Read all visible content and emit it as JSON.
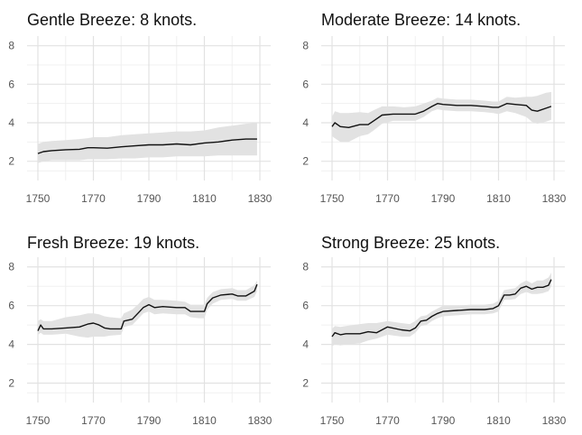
{
  "chart_data": [
    {
      "type": "line",
      "title": "Gentle Breeze: 8 knots.",
      "xlabel": "",
      "ylabel": "",
      "xlim": [
        1750,
        1830
      ],
      "ylim": [
        1,
        8.5
      ],
      "xticks": [
        1750,
        1770,
        1790,
        1810,
        1830
      ],
      "yticks": [
        2,
        4,
        6,
        8
      ],
      "grid": true,
      "series": [
        {
          "x": [
            1750,
            1752,
            1755,
            1760,
            1765,
            1768,
            1770,
            1775,
            1780,
            1785,
            1790,
            1795,
            1800,
            1805,
            1810,
            1815,
            1820,
            1825,
            1829
          ],
          "y": [
            2.4,
            2.5,
            2.55,
            2.6,
            2.62,
            2.7,
            2.7,
            2.68,
            2.75,
            2.8,
            2.85,
            2.85,
            2.9,
            2.85,
            2.95,
            3.0,
            3.1,
            3.15,
            3.15
          ],
          "lower": [
            1.9,
            2.0,
            2.05,
            2.05,
            2.05,
            2.1,
            2.1,
            2.1,
            2.15,
            2.15,
            2.2,
            2.2,
            2.25,
            2.25,
            2.25,
            2.3,
            2.3,
            2.3,
            2.3
          ],
          "upper": [
            2.9,
            3.0,
            3.05,
            3.1,
            3.15,
            3.2,
            3.25,
            3.25,
            3.35,
            3.4,
            3.45,
            3.5,
            3.55,
            3.55,
            3.6,
            3.75,
            3.85,
            3.95,
            4.0
          ]
        }
      ]
    },
    {
      "type": "line",
      "title": "Moderate Breeze: 14 knots.",
      "xlabel": "",
      "ylabel": "",
      "xlim": [
        1750,
        1830
      ],
      "ylim": [
        1,
        8.5
      ],
      "xticks": [
        1750,
        1770,
        1790,
        1810,
        1830
      ],
      "yticks": [
        2,
        4,
        6,
        8
      ],
      "grid": true,
      "series": [
        {
          "x": [
            1750,
            1751,
            1753,
            1756,
            1760,
            1763,
            1765,
            1768,
            1772,
            1776,
            1780,
            1783,
            1786,
            1788,
            1790,
            1795,
            1800,
            1805,
            1808,
            1810,
            1813,
            1816,
            1820,
            1822,
            1824,
            1827,
            1829
          ],
          "y": [
            3.8,
            4.0,
            3.8,
            3.75,
            3.9,
            3.9,
            4.1,
            4.4,
            4.45,
            4.45,
            4.45,
            4.6,
            4.85,
            5.0,
            4.95,
            4.9,
            4.9,
            4.85,
            4.8,
            4.8,
            5.0,
            4.95,
            4.9,
            4.65,
            4.6,
            4.75,
            4.85
          ],
          "lower": [
            3.3,
            3.2,
            3.0,
            3.0,
            3.3,
            3.4,
            3.6,
            3.95,
            4.1,
            4.1,
            4.1,
            4.3,
            4.6,
            4.7,
            4.65,
            4.6,
            4.6,
            4.55,
            4.5,
            4.45,
            4.6,
            4.5,
            4.3,
            4.05,
            3.95,
            4.05,
            4.15
          ],
          "upper": [
            4.3,
            4.6,
            4.5,
            4.5,
            4.55,
            4.5,
            4.65,
            4.85,
            4.85,
            4.8,
            4.85,
            5.0,
            5.15,
            5.3,
            5.25,
            5.2,
            5.2,
            5.15,
            5.1,
            5.1,
            5.35,
            5.3,
            5.35,
            5.35,
            5.4,
            5.55,
            5.6
          ]
        }
      ]
    },
    {
      "type": "line",
      "title": "Fresh Breeze: 19 knots.",
      "xlabel": "",
      "ylabel": "",
      "xlim": [
        1750,
        1830
      ],
      "ylim": [
        1,
        8.5
      ],
      "xticks": [
        1750,
        1770,
        1790,
        1810,
        1830
      ],
      "yticks": [
        2,
        4,
        6,
        8
      ],
      "grid": true,
      "series": [
        {
          "x": [
            1750,
            1751,
            1752,
            1755,
            1760,
            1765,
            1768,
            1770,
            1772,
            1774,
            1776,
            1780,
            1781,
            1784,
            1786,
            1788,
            1790,
            1792,
            1795,
            1800,
            1803,
            1805,
            1808,
            1810,
            1811,
            1813,
            1816,
            1820,
            1822,
            1825,
            1828,
            1829
          ],
          "y": [
            4.7,
            5.0,
            4.8,
            4.8,
            4.85,
            4.9,
            5.05,
            5.1,
            5.0,
            4.85,
            4.8,
            4.8,
            5.2,
            5.3,
            5.6,
            5.9,
            6.05,
            5.9,
            5.95,
            5.9,
            5.9,
            5.7,
            5.7,
            5.7,
            6.1,
            6.4,
            6.55,
            6.6,
            6.5,
            6.5,
            6.75,
            7.1
          ],
          "lower": [
            4.5,
            4.6,
            4.5,
            4.5,
            4.55,
            4.4,
            4.35,
            4.4,
            4.4,
            4.4,
            4.45,
            4.5,
            4.9,
            5.0,
            5.3,
            5.6,
            5.7,
            5.55,
            5.6,
            5.55,
            5.55,
            5.4,
            5.35,
            5.35,
            5.8,
            6.1,
            6.3,
            6.35,
            6.25,
            6.25,
            6.45,
            6.75
          ],
          "upper": [
            5.2,
            5.3,
            5.2,
            5.2,
            5.4,
            5.5,
            5.6,
            5.6,
            5.55,
            5.45,
            5.4,
            5.35,
            5.6,
            5.8,
            6.05,
            6.35,
            6.45,
            6.3,
            6.3,
            6.25,
            6.2,
            6.05,
            6.05,
            6.05,
            6.4,
            6.7,
            6.85,
            6.9,
            6.8,
            6.8,
            7.05,
            7.3
          ]
        }
      ]
    },
    {
      "type": "line",
      "title": "Strong Breeze: 25 knots.",
      "xlabel": "",
      "ylabel": "",
      "xlim": [
        1750,
        1830
      ],
      "ylim": [
        1,
        8.5
      ],
      "xticks": [
        1750,
        1770,
        1790,
        1810,
        1830
      ],
      "yticks": [
        2,
        4,
        6,
        8
      ],
      "grid": true,
      "series": [
        {
          "x": [
            1750,
            1751,
            1753,
            1755,
            1760,
            1763,
            1766,
            1770,
            1775,
            1778,
            1780,
            1782,
            1784,
            1786,
            1788,
            1790,
            1795,
            1800,
            1805,
            1808,
            1810,
            1812,
            1814,
            1816,
            1818,
            1820,
            1822,
            1824,
            1826,
            1828,
            1829
          ],
          "y": [
            4.4,
            4.6,
            4.5,
            4.55,
            4.55,
            4.65,
            4.6,
            4.9,
            4.75,
            4.7,
            4.85,
            5.2,
            5.25,
            5.45,
            5.6,
            5.7,
            5.75,
            5.8,
            5.8,
            5.85,
            6.0,
            6.55,
            6.55,
            6.6,
            6.9,
            7.0,
            6.85,
            6.95,
            6.95,
            7.05,
            7.35
          ],
          "lower": [
            3.9,
            4.0,
            3.95,
            4.0,
            4.05,
            4.2,
            4.3,
            4.5,
            4.4,
            4.4,
            4.6,
            4.95,
            5.0,
            5.2,
            5.35,
            5.45,
            5.5,
            5.55,
            5.55,
            5.6,
            5.7,
            6.3,
            6.3,
            6.35,
            6.6,
            6.7,
            6.6,
            6.6,
            6.65,
            6.75,
            7.0
          ],
          "upper": [
            4.8,
            4.95,
            4.9,
            4.95,
            5.05,
            5.1,
            5.1,
            5.2,
            5.1,
            5.05,
            5.2,
            5.45,
            5.5,
            5.7,
            5.85,
            6.0,
            6.0,
            6.05,
            6.05,
            6.1,
            6.25,
            6.8,
            6.85,
            6.9,
            7.15,
            7.3,
            7.15,
            7.3,
            7.3,
            7.45,
            7.7
          ]
        }
      ]
    }
  ]
}
